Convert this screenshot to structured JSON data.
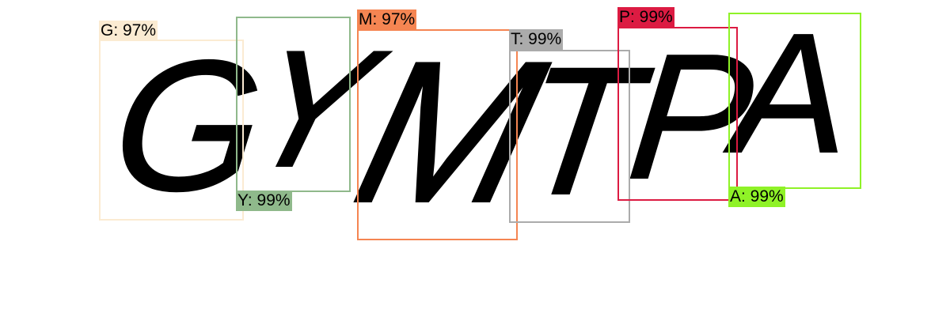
{
  "captcha_text": "GYMTPA",
  "detections": [
    {
      "char": "G",
      "label": "G: 97%",
      "color": "#fbebd2"
    },
    {
      "char": "Y",
      "label": "Y: 99%",
      "color": "#8fb98b"
    },
    {
      "char": "M",
      "label": "M: 97%",
      "color": "#f58552"
    },
    {
      "char": "T",
      "label": "T: 99%",
      "color": "#ababab"
    },
    {
      "char": "P",
      "label": "P: 99%",
      "color": "#dc1b42"
    },
    {
      "char": "A",
      "label": "A: 99%",
      "color": "#8ff227"
    }
  ]
}
